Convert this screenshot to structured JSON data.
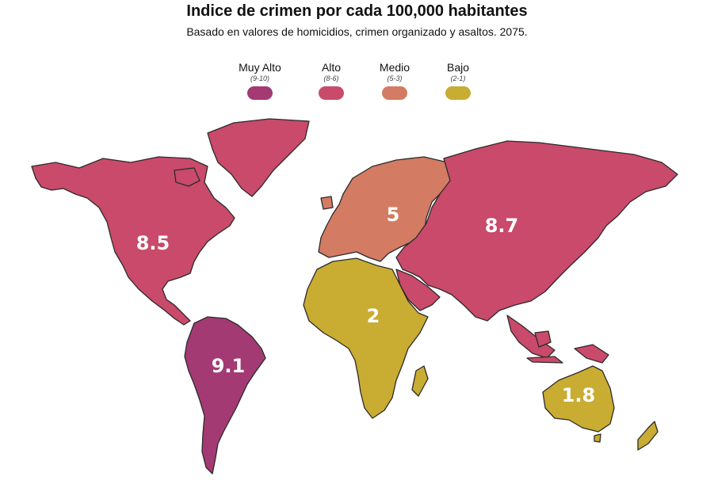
{
  "title": "Indice de crimen por cada 100,000 habitantes",
  "subtitle": "Basado en valores de homicidios, crimen organizado y asaltos. 2075.",
  "legend": [
    {
      "label": "Muy Alto",
      "range": "(9-10)",
      "color": "#a33a74"
    },
    {
      "label": "Alto",
      "range": "(8-6)",
      "color": "#c94a6a"
    },
    {
      "label": "Medio",
      "range": "(5-3)",
      "color": "#d37b63"
    },
    {
      "label": "Bajo",
      "range": "(2-1)",
      "color": "#c9ac32"
    }
  ],
  "regions": [
    {
      "id": "north-america",
      "value": "8.5",
      "category": "Alto"
    },
    {
      "id": "south-america",
      "value": "9.1",
      "category": "Muy Alto"
    },
    {
      "id": "europe",
      "value": "5",
      "category": "Medio"
    },
    {
      "id": "asia",
      "value": "8.7",
      "category": "Alto"
    },
    {
      "id": "africa",
      "value": "2",
      "category": "Bajo"
    },
    {
      "id": "oceania",
      "value": "1.8",
      "category": "Bajo"
    }
  ]
}
